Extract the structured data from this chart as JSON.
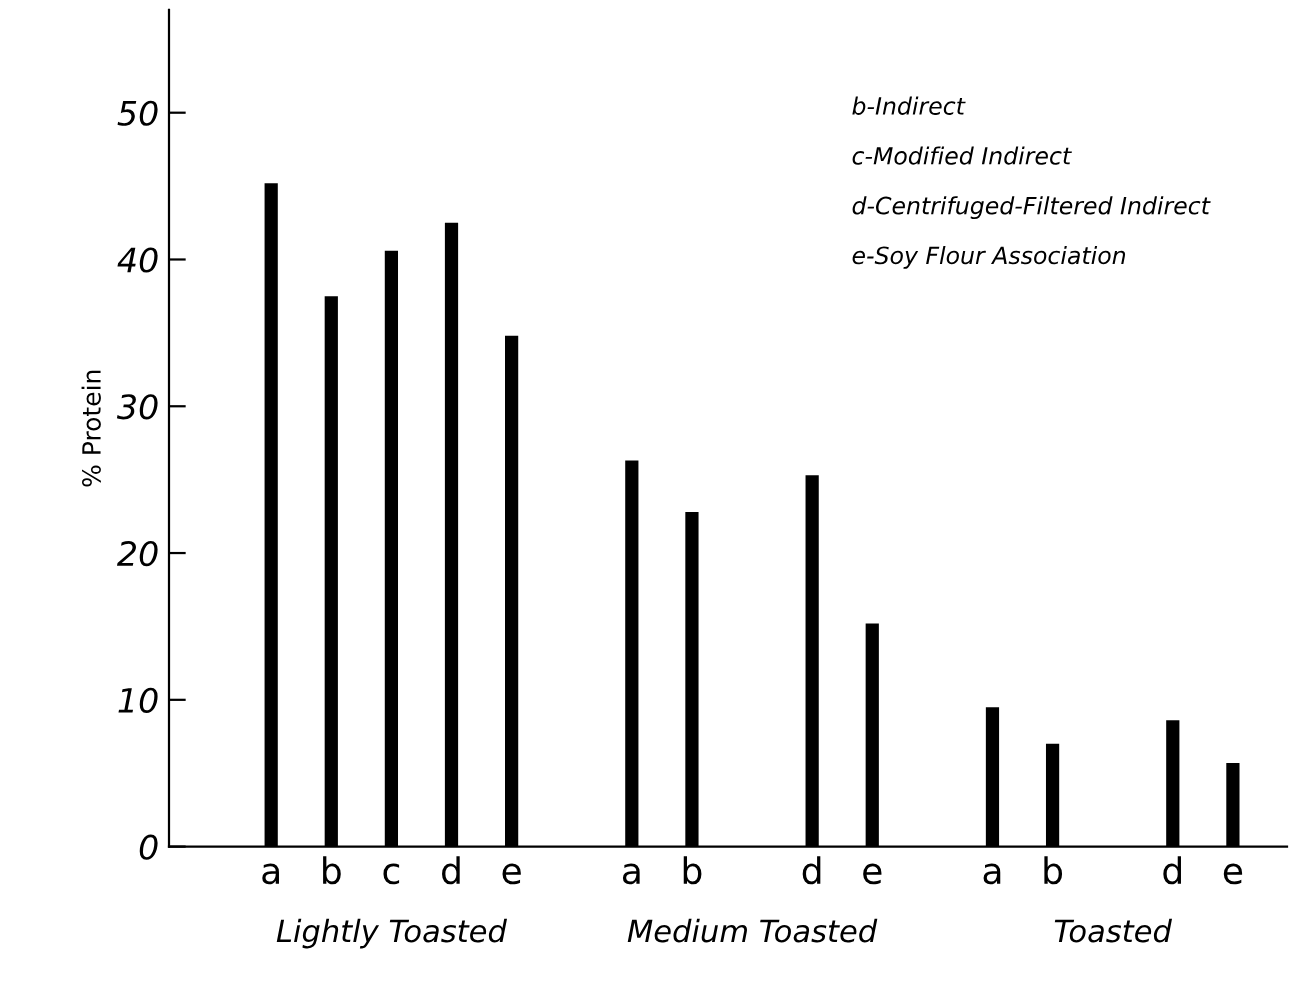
{
  "chart_data": {
    "type": "bar",
    "ylabel": "% Protein",
    "categories": [
      "a",
      "b",
      "c",
      "d",
      "e",
      null,
      "a",
      "b",
      null,
      "d",
      "e",
      null,
      "a",
      "b",
      null,
      "d",
      "e"
    ],
    "values": [
      45.2,
      37.5,
      40.6,
      42.5,
      34.8,
      null,
      26.3,
      22.8,
      null,
      25.3,
      15.2,
      null,
      9.5,
      7.0,
      null,
      8.6,
      5.7
    ],
    "color": "#000000",
    "ylim": [
      0,
      57
    ],
    "yticks": [
      0,
      10,
      20,
      30,
      40,
      50
    ],
    "grid": false,
    "legend": false,
    "annotations": [
      "b-Indirect",
      "c-Modified Indirect",
      "d-Centrifuged-Filtered Indirect",
      "e-Soy Flour Association",
      "Lightly Toasted",
      "Medium Toasted",
      "Toasted"
    ]
  }
}
